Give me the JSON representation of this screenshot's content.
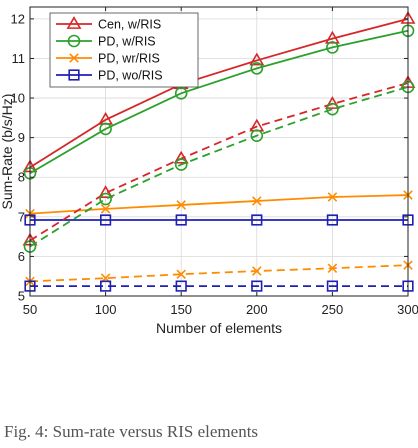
{
  "chart_data": {
    "type": "line",
    "xlabel": "Number of elements",
    "ylabel": "Sum-Rate (b/s/Hz)",
    "xlim": [
      50,
      300
    ],
    "ylim": [
      5,
      12.3
    ],
    "x_ticks": [
      50,
      100,
      150,
      200,
      250,
      300
    ],
    "y_ticks": [
      5,
      6,
      7,
      8,
      9,
      10,
      11,
      12
    ],
    "grid": true,
    "legend_position": "top-left",
    "x": [
      50,
      100,
      150,
      200,
      250,
      300
    ],
    "series": [
      {
        "name": "Cen, w/RIS",
        "color": "#d62728",
        "marker": "triangle",
        "line_style": "solid",
        "values": [
          8.25,
          9.45,
          10.35,
          10.95,
          11.5,
          12.0
        ]
      },
      {
        "name": "PD, w/RIS",
        "color": "#2ca02c",
        "marker": "circle",
        "line_style": "solid",
        "values": [
          8.1,
          9.22,
          10.12,
          10.75,
          11.28,
          11.7
        ]
      },
      {
        "name": "PD, wr/RIS",
        "color": "#ff8c00",
        "marker": "x",
        "line_style": "solid",
        "values": [
          7.08,
          7.2,
          7.3,
          7.4,
          7.5,
          7.55
        ]
      },
      {
        "name": "PD, wo/RIS",
        "color": "#1f1fb4",
        "marker": "square",
        "line_style": "solid",
        "values": [
          6.92,
          6.92,
          6.92,
          6.92,
          6.92,
          6.92
        ]
      },
      {
        "color": "#d62728",
        "marker": "triangle",
        "line_style": "dashed",
        "values": [
          6.4,
          7.6,
          8.47,
          9.28,
          9.85,
          10.38
        ]
      },
      {
        "color": "#2ca02c",
        "marker": "circle",
        "line_style": "dashed",
        "values": [
          6.25,
          7.45,
          8.32,
          9.05,
          9.72,
          10.28
        ]
      },
      {
        "color": "#ff8c00",
        "marker": "x",
        "line_style": "dashed",
        "values": [
          5.37,
          5.45,
          5.55,
          5.63,
          5.7,
          5.78
        ]
      },
      {
        "color": "#1f1fb4",
        "marker": "square",
        "line_style": "dashed",
        "values": [
          5.25,
          5.25,
          5.25,
          5.25,
          5.25,
          5.25
        ]
      }
    ]
  },
  "caption": "Fig. 4: Sum-rate versus RIS elements"
}
